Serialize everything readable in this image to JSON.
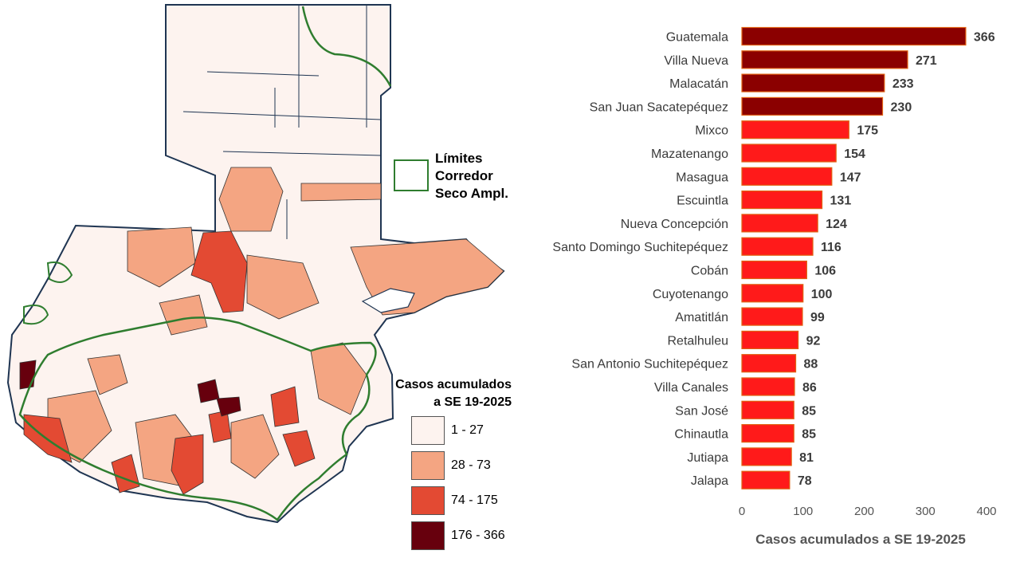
{
  "map": {
    "corridor_legend_label": "Límites\nCorredor\nSeco Ampl.",
    "legend_title": "Casos acumulados\na SE 19-2025",
    "legend_items": [
      {
        "label": "1 - 27",
        "color": "#fdf3ef"
      },
      {
        "label": "28 - 73",
        "color": "#f4a582"
      },
      {
        "label": "74 - 175",
        "color": "#e34a33"
      },
      {
        "label": "176 - 366",
        "color": "#67000d"
      }
    ],
    "corridor_color": "#2f7d2f",
    "border_color": "#1f3552"
  },
  "chart_data": {
    "type": "bar",
    "orientation": "horizontal",
    "categories": [
      "Guatemala",
      "Villa Nueva",
      "Malacatán",
      "San Juan Sacatepéquez",
      "Mixco",
      "Mazatenango",
      "Masagua",
      "Escuintla",
      "Nueva Concepción",
      "Santo Domingo Suchitepéquez",
      "Cobán",
      "Cuyotenango",
      "Amatitlán",
      "Retalhuleu",
      "San Antonio Suchitepéquez",
      "Villa Canales",
      "San José",
      "Chinautla",
      "Jutiapa",
      "Jalapa"
    ],
    "values": [
      366,
      271,
      233,
      230,
      175,
      154,
      147,
      131,
      124,
      116,
      106,
      100,
      99,
      92,
      88,
      86,
      85,
      85,
      81,
      78
    ],
    "xlabel": "Casos acumulados a SE 19-2025",
    "xlim": [
      0,
      400
    ],
    "xticks": [
      0,
      100,
      200,
      300,
      400
    ],
    "colors": {
      "high": "#8b0000",
      "mid": "#ff1a1a",
      "edge": "#e06010"
    },
    "grid": false
  }
}
